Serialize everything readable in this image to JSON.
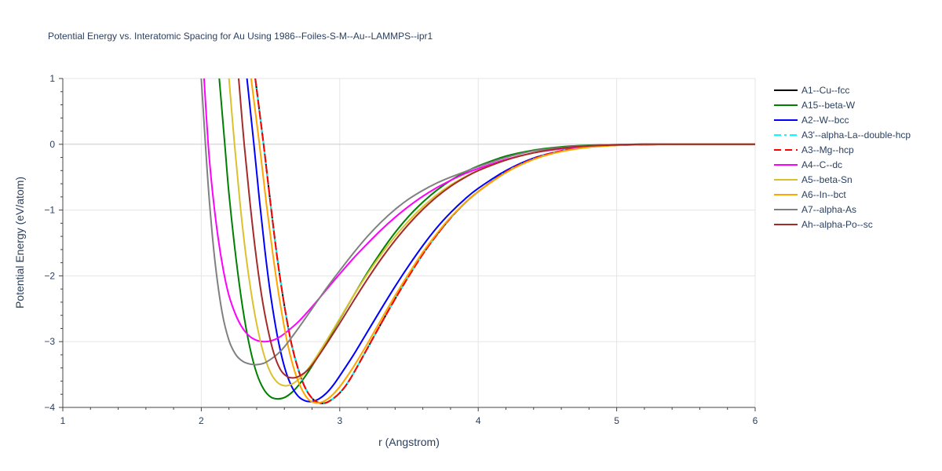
{
  "chart_data": {
    "type": "line",
    "title": "Potential Energy vs. Interatomic Spacing for Au Using 1986--Foiles-S-M--Au--LAMMPS--ipr1",
    "xlabel": "r (Angstrom)",
    "ylabel": "Potential Energy (eV/atom)",
    "xlim": [
      1,
      6
    ],
    "ylim": [
      -4,
      1
    ],
    "xticks": [
      1,
      2,
      3,
      4,
      5,
      6
    ],
    "yticks": [
      1,
      0,
      -1,
      -2,
      -3,
      -4
    ],
    "xtick_labels": [
      "1",
      "2",
      "3",
      "4",
      "5",
      "6"
    ],
    "ytick_labels": [
      "1",
      "0",
      "−1",
      "−2",
      "−3",
      "−4"
    ],
    "grid": true,
    "legend_position": "right",
    "series": [
      {
        "name": "A1--Cu--fcc",
        "color": "#000000",
        "dash": "solid",
        "x": [
          2.39,
          2.45,
          2.5,
          2.55,
          2.6,
          2.65,
          2.7,
          2.75,
          2.8,
          2.85,
          2.9,
          2.95,
          3.0,
          3.05,
          3.1,
          3.2,
          3.3,
          3.4,
          3.5,
          3.6,
          3.7,
          3.8,
          3.9,
          4.0,
          4.2,
          4.4,
          4.6,
          4.8,
          5.0,
          5.2,
          5.4,
          5.6,
          6.0
        ],
        "y": [
          1.0,
          0.0,
          -0.9,
          -1.75,
          -2.45,
          -3.02,
          -3.42,
          -3.7,
          -3.86,
          -3.93,
          -3.93,
          -3.87,
          -3.78,
          -3.65,
          -3.48,
          -3.1,
          -2.72,
          -2.35,
          -2.0,
          -1.67,
          -1.38,
          -1.12,
          -0.9,
          -0.72,
          -0.42,
          -0.22,
          -0.1,
          -0.04,
          -0.015,
          -0.005,
          0.0,
          0.0,
          0.0
        ]
      },
      {
        "name": "A15--beta-W",
        "color": "#008000",
        "dash": "solid",
        "x": [
          2.13,
          2.17,
          2.2,
          2.25,
          2.3,
          2.35,
          2.4,
          2.45,
          2.5,
          2.55,
          2.6,
          2.65,
          2.7,
          2.75,
          2.8,
          2.9,
          3.0,
          3.1,
          3.2,
          3.3,
          3.4,
          3.5,
          3.6,
          3.7,
          3.8,
          3.9,
          4.0,
          4.2,
          4.4,
          4.6,
          4.8,
          5.0,
          5.2,
          5.4,
          6.0
        ],
        "y": [
          1.0,
          0.0,
          -0.75,
          -1.72,
          -2.5,
          -3.08,
          -3.48,
          -3.72,
          -3.84,
          -3.87,
          -3.85,
          -3.78,
          -3.67,
          -3.53,
          -3.37,
          -3.02,
          -2.66,
          -2.3,
          -1.95,
          -1.63,
          -1.34,
          -1.09,
          -0.88,
          -0.7,
          -0.55,
          -0.43,
          -0.33,
          -0.18,
          -0.09,
          -0.04,
          -0.015,
          -0.005,
          0.0,
          0.0,
          0.0
        ]
      },
      {
        "name": "A2--W--bcc",
        "color": "#0000ff",
        "dash": "solid",
        "x": [
          2.33,
          2.38,
          2.42,
          2.46,
          2.5,
          2.55,
          2.6,
          2.65,
          2.7,
          2.75,
          2.8,
          2.85,
          2.9,
          2.95,
          3.0,
          3.1,
          3.2,
          3.3,
          3.4,
          3.5,
          3.6,
          3.7,
          3.8,
          3.9,
          4.0,
          4.2,
          4.4,
          4.6,
          4.8,
          5.0,
          5.2,
          5.4,
          5.6,
          6.0
        ],
        "y": [
          1.0,
          0.0,
          -0.85,
          -1.62,
          -2.28,
          -2.92,
          -3.38,
          -3.67,
          -3.83,
          -3.9,
          -3.91,
          -3.87,
          -3.79,
          -3.67,
          -3.52,
          -3.2,
          -2.85,
          -2.5,
          -2.16,
          -1.84,
          -1.54,
          -1.27,
          -1.04,
          -0.84,
          -0.67,
          -0.4,
          -0.21,
          -0.1,
          -0.04,
          -0.015,
          -0.005,
          0.0,
          0.0,
          0.0
        ]
      },
      {
        "name": "A3'--alpha-La--double-hcp",
        "color": "#00ffff",
        "dash": "dashdot",
        "x": [
          2.39,
          2.45,
          2.5,
          2.55,
          2.6,
          2.65,
          2.7,
          2.75,
          2.8,
          2.85,
          2.9,
          2.95,
          3.0,
          3.05,
          3.1,
          3.2,
          3.3,
          3.4,
          3.5,
          3.6,
          3.7,
          3.8,
          3.9,
          4.0,
          4.2,
          4.4,
          4.6,
          4.8,
          5.0,
          5.2,
          5.4,
          5.6,
          6.0
        ],
        "y": [
          1.0,
          0.0,
          -0.9,
          -1.75,
          -2.45,
          -3.02,
          -3.42,
          -3.7,
          -3.86,
          -3.93,
          -3.93,
          -3.87,
          -3.78,
          -3.65,
          -3.48,
          -3.1,
          -2.72,
          -2.35,
          -2.0,
          -1.67,
          -1.38,
          -1.12,
          -0.9,
          -0.72,
          -0.42,
          -0.22,
          -0.1,
          -0.04,
          -0.015,
          -0.005,
          0.0,
          0.0,
          0.0
        ]
      },
      {
        "name": "A3--Mg--hcp",
        "color": "#ff0000",
        "dash": "dash",
        "x": [
          2.39,
          2.45,
          2.5,
          2.55,
          2.6,
          2.65,
          2.7,
          2.75,
          2.8,
          2.85,
          2.9,
          2.95,
          3.0,
          3.05,
          3.1,
          3.2,
          3.3,
          3.4,
          3.5,
          3.6,
          3.7,
          3.8,
          3.9,
          4.0,
          4.2,
          4.4,
          4.6,
          4.8,
          5.0,
          5.2,
          5.4,
          5.6,
          6.0
        ],
        "y": [
          1.0,
          0.0,
          -0.9,
          -1.75,
          -2.45,
          -3.02,
          -3.42,
          -3.7,
          -3.86,
          -3.93,
          -3.93,
          -3.87,
          -3.78,
          -3.65,
          -3.48,
          -3.1,
          -2.72,
          -2.35,
          -2.0,
          -1.67,
          -1.38,
          -1.12,
          -0.9,
          -0.72,
          -0.42,
          -0.22,
          -0.1,
          -0.04,
          -0.015,
          -0.005,
          0.0,
          0.0,
          0.0
        ]
      },
      {
        "name": "A4--C--dc",
        "color": "#ff00ff",
        "dash": "solid",
        "x": [
          2.02,
          2.05,
          2.08,
          2.12,
          2.16,
          2.2,
          2.25,
          2.3,
          2.35,
          2.4,
          2.45,
          2.5,
          2.55,
          2.6,
          2.7,
          2.8,
          2.9,
          3.0,
          3.1,
          3.2,
          3.3,
          3.4,
          3.5,
          3.6,
          3.7,
          3.8,
          3.9,
          4.0,
          4.2,
          4.4,
          4.6,
          4.8,
          5.0,
          5.2,
          5.4,
          6.0
        ],
        "y": [
          1.0,
          0.0,
          -0.7,
          -1.4,
          -1.92,
          -2.3,
          -2.6,
          -2.8,
          -2.92,
          -2.98,
          -3.0,
          -2.99,
          -2.95,
          -2.88,
          -2.7,
          -2.47,
          -2.22,
          -1.97,
          -1.73,
          -1.51,
          -1.3,
          -1.11,
          -0.94,
          -0.79,
          -0.66,
          -0.55,
          -0.45,
          -0.37,
          -0.23,
          -0.13,
          -0.07,
          -0.03,
          -0.01,
          0.0,
          0.0,
          0.0
        ]
      },
      {
        "name": "A5--beta-Sn",
        "color": "#dbc12c",
        "dash": "solid",
        "x": [
          2.2,
          2.24,
          2.28,
          2.32,
          2.36,
          2.4,
          2.45,
          2.5,
          2.55,
          2.6,
          2.65,
          2.7,
          2.75,
          2.8,
          2.9,
          3.0,
          3.1,
          3.2,
          3.3,
          3.4,
          3.5,
          3.6,
          3.7,
          3.8,
          3.9,
          4.0,
          4.2,
          4.4,
          4.6,
          4.8,
          5.0,
          5.2,
          5.4,
          6.0
        ],
        "y": [
          1.0,
          0.0,
          -0.9,
          -1.65,
          -2.25,
          -2.73,
          -3.18,
          -3.47,
          -3.62,
          -3.67,
          -3.65,
          -3.58,
          -3.47,
          -3.33,
          -3.0,
          -2.65,
          -2.3,
          -1.97,
          -1.67,
          -1.4,
          -1.16,
          -0.95,
          -0.77,
          -0.62,
          -0.5,
          -0.4,
          -0.24,
          -0.13,
          -0.06,
          -0.025,
          -0.01,
          0.0,
          0.0,
          0.0
        ]
      },
      {
        "name": "A6--In--bct",
        "color": "#ffa500",
        "dash": "solid",
        "x": [
          2.36,
          2.42,
          2.47,
          2.52,
          2.57,
          2.62,
          2.67,
          2.72,
          2.77,
          2.82,
          2.87,
          2.92,
          2.97,
          3.02,
          3.1,
          3.2,
          3.3,
          3.4,
          3.5,
          3.6,
          3.7,
          3.8,
          3.9,
          4.0,
          4.2,
          4.4,
          4.6,
          4.8,
          5.0,
          5.2,
          5.4,
          5.6,
          6.0
        ],
        "y": [
          1.0,
          0.0,
          -0.9,
          -1.72,
          -2.42,
          -3.0,
          -3.42,
          -3.7,
          -3.87,
          -3.93,
          -3.92,
          -3.86,
          -3.76,
          -3.63,
          -3.38,
          -3.03,
          -2.66,
          -2.3,
          -1.96,
          -1.64,
          -1.36,
          -1.11,
          -0.9,
          -0.72,
          -0.43,
          -0.23,
          -0.11,
          -0.045,
          -0.017,
          -0.005,
          0.0,
          0.0,
          0.0
        ]
      },
      {
        "name": "A7--alpha-As",
        "color": "#808080",
        "dash": "solid",
        "x": [
          2.0,
          2.03,
          2.06,
          2.1,
          2.15,
          2.2,
          2.25,
          2.3,
          2.35,
          2.4,
          2.45,
          2.5,
          2.55,
          2.6,
          2.7,
          2.8,
          2.9,
          3.0,
          3.1,
          3.2,
          3.3,
          3.4,
          3.5,
          3.6,
          3.7,
          3.8,
          3.9,
          4.0,
          4.2,
          4.4,
          4.6,
          4.8,
          5.0,
          5.2,
          5.4,
          6.0
        ],
        "y": [
          1.0,
          0.0,
          -0.9,
          -1.8,
          -2.55,
          -2.98,
          -3.2,
          -3.3,
          -3.34,
          -3.35,
          -3.33,
          -3.27,
          -3.19,
          -3.08,
          -2.8,
          -2.5,
          -2.2,
          -1.92,
          -1.65,
          -1.4,
          -1.18,
          -0.99,
          -0.83,
          -0.7,
          -0.59,
          -0.5,
          -0.42,
          -0.34,
          -0.2,
          -0.1,
          -0.05,
          -0.02,
          -0.005,
          0.0,
          0.0,
          0.0
        ]
      },
      {
        "name": "Ah--alpha-Po--sc",
        "color": "#a52a2a",
        "dash": "solid",
        "x": [
          2.27,
          2.31,
          2.35,
          2.39,
          2.43,
          2.47,
          2.52,
          2.57,
          2.62,
          2.67,
          2.72,
          2.77,
          2.82,
          2.9,
          3.0,
          3.1,
          3.2,
          3.3,
          3.4,
          3.5,
          3.6,
          3.7,
          3.8,
          3.9,
          4.0,
          4.2,
          4.4,
          4.6,
          4.8,
          5.0,
          5.2,
          5.4,
          6.0
        ],
        "y": [
          1.0,
          0.0,
          -0.85,
          -1.6,
          -2.22,
          -2.7,
          -3.15,
          -3.42,
          -3.53,
          -3.55,
          -3.51,
          -3.43,
          -3.3,
          -3.05,
          -2.72,
          -2.38,
          -2.05,
          -1.74,
          -1.46,
          -1.21,
          -0.99,
          -0.8,
          -0.64,
          -0.51,
          -0.4,
          -0.24,
          -0.13,
          -0.06,
          -0.025,
          -0.01,
          0.0,
          0.0,
          0.0
        ]
      }
    ]
  }
}
